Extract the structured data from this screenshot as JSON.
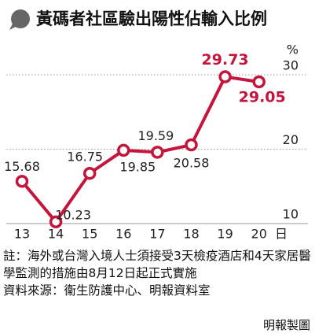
{
  "chart_data": {
    "type": "line",
    "title": "黃碼者社區驗出陽性佔輸入比例",
    "categories": [
      "13",
      "14",
      "15",
      "16",
      "17",
      "18",
      "19",
      "20"
    ],
    "x_unit": "日",
    "y_unit": "%",
    "values": [
      15.68,
      10.23,
      16.75,
      19.85,
      19.59,
      20.58,
      29.73,
      29.05
    ],
    "color": "#c4163c",
    "ylim": [
      10,
      30
    ],
    "yticks": [
      10,
      20,
      30
    ],
    "grid": true
  },
  "note": "註：海外或台灣入境人士須接受3天檢疫酒店和4天家居醫學監測的措施由8月12日起正式實施",
  "source": "資料來源：衞生防護中心、明報資料室",
  "credit": "明報製圖"
}
